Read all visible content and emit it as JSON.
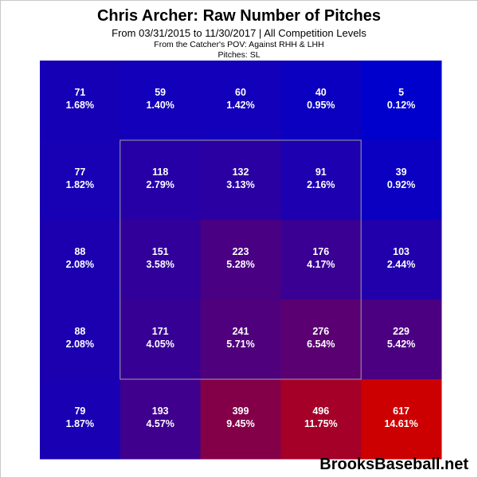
{
  "header": {
    "title": "Chris Archer: Raw Number of Pitches",
    "subtitle": "From 03/31/2015 to 11/30/2017 | All Competition Levels",
    "pov_note": "From the Catcher's POV:  Against RHH & LHH",
    "pitches_note": "Pitches:  SL"
  },
  "watermark": "BrooksBaseball.net",
  "chart_data": {
    "type": "heatmap",
    "title": "Chris Archer: Raw Number of Pitches",
    "rows": 5,
    "cols": 5,
    "strike_zone": {
      "rows": [
        1,
        3
      ],
      "cols": [
        1,
        3
      ]
    },
    "color_scale": {
      "low": "#0000cc",
      "high": "#cc0000"
    },
    "cells": [
      [
        {
          "count": 71,
          "pct": "1.68%"
        },
        {
          "count": 59,
          "pct": "1.40%"
        },
        {
          "count": 60,
          "pct": "1.42%"
        },
        {
          "count": 40,
          "pct": "0.95%"
        },
        {
          "count": 5,
          "pct": "0.12%"
        }
      ],
      [
        {
          "count": 77,
          "pct": "1.82%"
        },
        {
          "count": 118,
          "pct": "2.79%"
        },
        {
          "count": 132,
          "pct": "3.13%"
        },
        {
          "count": 91,
          "pct": "2.16%"
        },
        {
          "count": 39,
          "pct": "0.92%"
        }
      ],
      [
        {
          "count": 88,
          "pct": "2.08%"
        },
        {
          "count": 151,
          "pct": "3.58%"
        },
        {
          "count": 223,
          "pct": "5.28%"
        },
        {
          "count": 176,
          "pct": "4.17%"
        },
        {
          "count": 103,
          "pct": "2.44%"
        }
      ],
      [
        {
          "count": 88,
          "pct": "2.08%"
        },
        {
          "count": 171,
          "pct": "4.05%"
        },
        {
          "count": 241,
          "pct": "5.71%"
        },
        {
          "count": 276,
          "pct": "6.54%"
        },
        {
          "count": 229,
          "pct": "5.42%"
        }
      ],
      [
        {
          "count": 79,
          "pct": "1.87%"
        },
        {
          "count": 193,
          "pct": "4.57%"
        },
        {
          "count": 399,
          "pct": "9.45%"
        },
        {
          "count": 496,
          "pct": "11.75%"
        },
        {
          "count": 617,
          "pct": "14.61%"
        }
      ]
    ]
  }
}
